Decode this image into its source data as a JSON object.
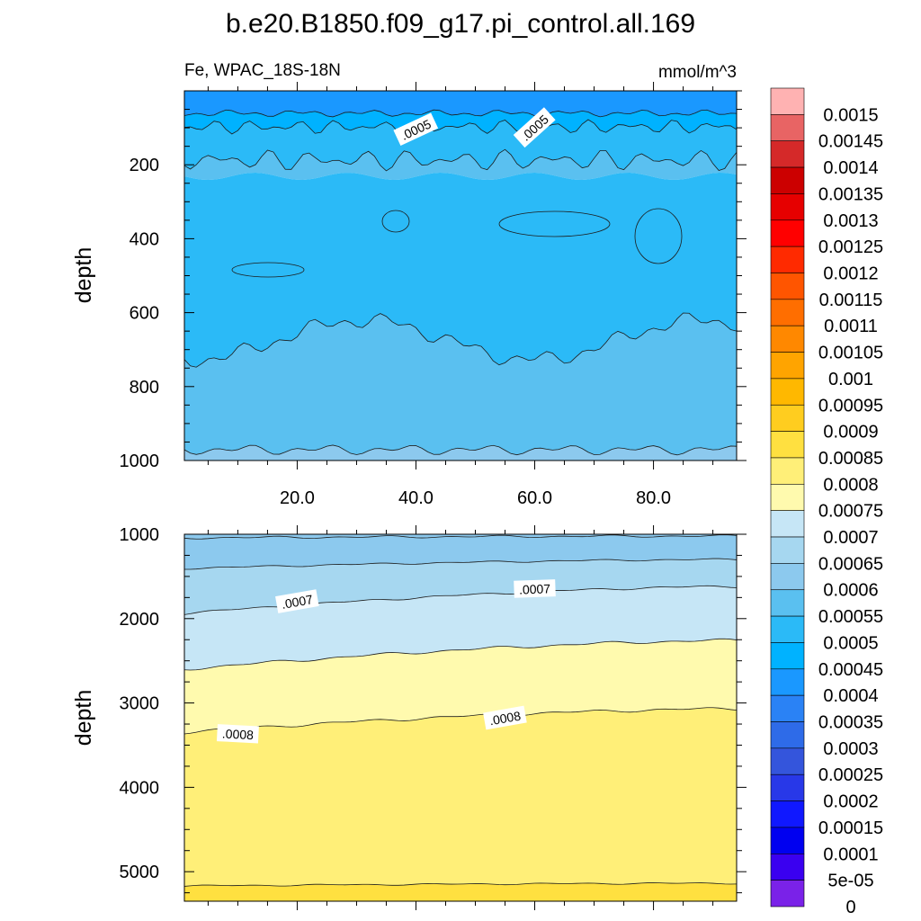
{
  "chart_data": {
    "type": "contour",
    "title": "b.e20.B1850.f09_g17.pi_control.all.169",
    "variable": "Fe, WPAC_18S-18N",
    "units": "mmol/m^3",
    "panels": [
      {
        "name": "upper",
        "ylabel": "depth",
        "xlim": [
          1,
          94
        ],
        "ylim": [
          1000,
          0
        ],
        "xticks": [
          "20.0",
          "40.0",
          "60.0",
          "80.0"
        ],
        "xtick_values": [
          20,
          40,
          60,
          80
        ],
        "yticks": [
          "200",
          "400",
          "600",
          "800",
          "1000"
        ],
        "ytick_values": [
          200,
          400,
          600,
          800,
          1000
        ],
        "bands": [
          {
            "from": 0,
            "to": "b1",
            "level": 0.0004
          },
          {
            "from": "b1",
            "to": "b2",
            "level": 0.00045
          },
          {
            "from": "b2",
            "to": "b3",
            "level": 0.0005
          },
          {
            "from": "b3",
            "to": "b4",
            "level": 0.00055
          },
          {
            "from": "b4",
            "to": "b5",
            "level": 0.0005
          },
          {
            "from": "b5",
            "to": "b6",
            "level": 0.00055
          },
          {
            "from": "b6",
            "to": 1000,
            "level": 0.0006
          }
        ],
        "contour_labels": [
          {
            "text": ".0005",
            "x": 40,
            "depth": 105,
            "angle": -25
          },
          {
            "text": ".0005",
            "x": 60,
            "depth": 100,
            "angle": -42
          }
        ]
      },
      {
        "name": "lower",
        "ylabel": "depth",
        "xlim": [
          1,
          94
        ],
        "ylim": [
          5350,
          1000
        ],
        "yticks": [
          "1000",
          "2000",
          "3000",
          "4000",
          "5000"
        ],
        "ytick_values": [
          1000,
          2000,
          3000,
          4000,
          5000
        ],
        "bands": [
          {
            "level": 0.0006
          },
          {
            "level": 0.00065
          },
          {
            "level": 0.0007
          },
          {
            "level": 0.00075
          },
          {
            "level": 0.0008
          },
          {
            "level": 0.00085
          }
        ],
        "contour_labels": [
          {
            "text": ".0007",
            "x": 20,
            "depth": 1800,
            "angle": -10
          },
          {
            "text": ".0007",
            "x": 60,
            "depth": 1650,
            "angle": -2
          },
          {
            "text": ".0008",
            "x": 10,
            "depth": 3370,
            "angle": 3
          },
          {
            "text": ".0008",
            "x": 55,
            "depth": 3180,
            "angle": -10
          }
        ]
      }
    ],
    "colorbar": {
      "labels": [
        "0.0015",
        "0.00145",
        "0.0014",
        "0.00135",
        "0.0013",
        "0.00125",
        "0.0012",
        "0.00115",
        "0.0011",
        "0.00105",
        "0.001",
        "0.00095",
        "0.0009",
        "0.00085",
        "0.0008",
        "0.00075",
        "0.0007",
        "0.00065",
        "0.0006",
        "0.00055",
        "0.0005",
        "0.00045",
        "0.0004",
        "0.00035",
        "0.0003",
        "0.00025",
        "0.0002",
        "0.00015",
        "0.0001",
        "5e-05",
        "0"
      ],
      "colors": [
        "#ffb2b2",
        "#e86464",
        "#d52929",
        "#cc0000",
        "#e60000",
        "#ff0000",
        "#ff2a00",
        "#ff5500",
        "#ff6e00",
        "#ff8800",
        "#ffa400",
        "#ffb800",
        "#ffcd1f",
        "#ffe040",
        "#ffef78",
        "#fffaae",
        "#c6e6f6",
        "#a6d7f0",
        "#8cc9ee",
        "#5ac0f0",
        "#2bbaf7",
        "#00b2ff",
        "#1a98ff",
        "#2a82f5",
        "#2e6be8",
        "#3455dc",
        "#2838e8",
        "#1018ff",
        "#0000f0",
        "#3a00f0",
        "#7a22e8"
      ]
    }
  }
}
